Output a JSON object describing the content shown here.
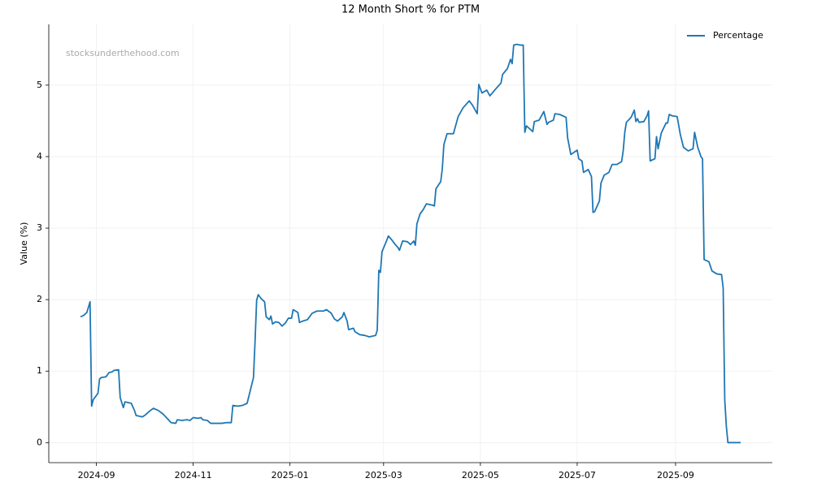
{
  "chart_data": {
    "type": "line",
    "title": "12 Month Short % for PTM",
    "ylabel": "Value (%)",
    "watermark": "stocksunderthehood.com",
    "legend": "upper right",
    "grid": true,
    "xlim": [
      -30,
      426
    ],
    "xticks": [
      {
        "value": 0,
        "label": "2024-09"
      },
      {
        "value": 61,
        "label": "2024-11"
      },
      {
        "value": 122,
        "label": "2025-01"
      },
      {
        "value": 181,
        "label": "2025-03"
      },
      {
        "value": 242,
        "label": "2025-05"
      },
      {
        "value": 303,
        "label": "2025-07"
      },
      {
        "value": 365,
        "label": "2025-09"
      }
    ],
    "ylim": [
      -0.28,
      5.85
    ],
    "yticks": [
      0,
      1,
      2,
      3,
      4,
      5
    ],
    "x": [
      -10,
      -8,
      -6,
      -4,
      -3,
      -2,
      1,
      2,
      3,
      6,
      8,
      10,
      11,
      14,
      15,
      17,
      18,
      22,
      24,
      25,
      29,
      31,
      34,
      36,
      39,
      42,
      45,
      47,
      50,
      51,
      54,
      57,
      59,
      61,
      64,
      66,
      67,
      70,
      72,
      75,
      79,
      82,
      85,
      86,
      89,
      92,
      95,
      99,
      100,
      101,
      102,
      104,
      106,
      107,
      109,
      110,
      111,
      113,
      115,
      117,
      119,
      121,
      123,
      124,
      127,
      128,
      130,
      133,
      136,
      139,
      143,
      145,
      148,
      150,
      152,
      155,
      156,
      158,
      159,
      162,
      163,
      166,
      169,
      172,
      176,
      177,
      178,
      179,
      180,
      183,
      184,
      186,
      188,
      190,
      191,
      193,
      196,
      198,
      200,
      201,
      202,
      204,
      206,
      208,
      212,
      213,
      214,
      217,
      218,
      219,
      221,
      225,
      228,
      231,
      235,
      237,
      240,
      241,
      243,
      246,
      248,
      251,
      255,
      256,
      259,
      261,
      262,
      263,
      265,
      267,
      269,
      270,
      271,
      275,
      276,
      279,
      282,
      284,
      285,
      288,
      289,
      292,
      296,
      297,
      299,
      303,
      304,
      306,
      307,
      310,
      312,
      313,
      314,
      317,
      318,
      320,
      323,
      325,
      328,
      331,
      332,
      333,
      334,
      337,
      339,
      340,
      341,
      342,
      345,
      347,
      348,
      349,
      352,
      353,
      354,
      356,
      359,
      360,
      361,
      363,
      366,
      368,
      370,
      373,
      376,
      377,
      379,
      381,
      382,
      383,
      386,
      388,
      391,
      394,
      395,
      396,
      397,
      398,
      406
    ],
    "series": [
      {
        "name": "Percentage",
        "color": "#1f77b4",
        "values": [
          1.76,
          1.78,
          1.82,
          1.97,
          0.51,
          0.6,
          0.69,
          0.89,
          0.91,
          0.92,
          0.98,
          0.99,
          1.01,
          1.02,
          0.63,
          0.49,
          0.57,
          0.55,
          0.45,
          0.38,
          0.36,
          0.39,
          0.45,
          0.48,
          0.45,
          0.4,
          0.33,
          0.28,
          0.27,
          0.32,
          0.31,
          0.32,
          0.31,
          0.35,
          0.34,
          0.35,
          0.32,
          0.31,
          0.27,
          0.27,
          0.27,
          0.28,
          0.28,
          0.52,
          0.51,
          0.52,
          0.55,
          0.91,
          1.42,
          1.99,
          2.07,
          2.01,
          1.97,
          1.76,
          1.72,
          1.77,
          1.66,
          1.69,
          1.68,
          1.63,
          1.67,
          1.74,
          1.74,
          1.86,
          1.82,
          1.68,
          1.7,
          1.72,
          1.81,
          1.84,
          1.84,
          1.86,
          1.81,
          1.73,
          1.7,
          1.76,
          1.82,
          1.7,
          1.58,
          1.6,
          1.55,
          1.51,
          1.5,
          1.48,
          1.5,
          1.57,
          2.41,
          2.38,
          2.67,
          2.83,
          2.89,
          2.84,
          2.78,
          2.73,
          2.69,
          2.82,
          2.81,
          2.77,
          2.82,
          2.76,
          3.06,
          3.2,
          3.26,
          3.34,
          3.32,
          3.31,
          3.55,
          3.65,
          3.83,
          4.17,
          4.32,
          4.32,
          4.56,
          4.68,
          4.78,
          4.72,
          4.6,
          5.01,
          4.89,
          4.93,
          4.85,
          4.93,
          5.03,
          5.15,
          5.23,
          5.36,
          5.3,
          5.56,
          5.57,
          5.56,
          5.56,
          4.34,
          4.43,
          4.35,
          4.49,
          4.51,
          4.63,
          4.45,
          4.48,
          4.51,
          4.6,
          4.59,
          4.55,
          4.26,
          4.03,
          4.09,
          3.97,
          3.94,
          3.78,
          3.82,
          3.72,
          3.22,
          3.23,
          3.38,
          3.63,
          3.74,
          3.78,
          3.89,
          3.89,
          3.93,
          4.08,
          4.34,
          4.48,
          4.55,
          4.65,
          4.49,
          4.53,
          4.48,
          4.49,
          4.57,
          4.64,
          3.94,
          3.97,
          4.28,
          4.11,
          4.33,
          4.47,
          4.47,
          4.59,
          4.57,
          4.56,
          4.31,
          4.13,
          4.08,
          4.11,
          4.34,
          4.13,
          4.0,
          3.97,
          2.56,
          2.53,
          2.4,
          2.36,
          2.35,
          2.16,
          0.6,
          0.23,
          0,
          0
        ]
      }
    ]
  }
}
